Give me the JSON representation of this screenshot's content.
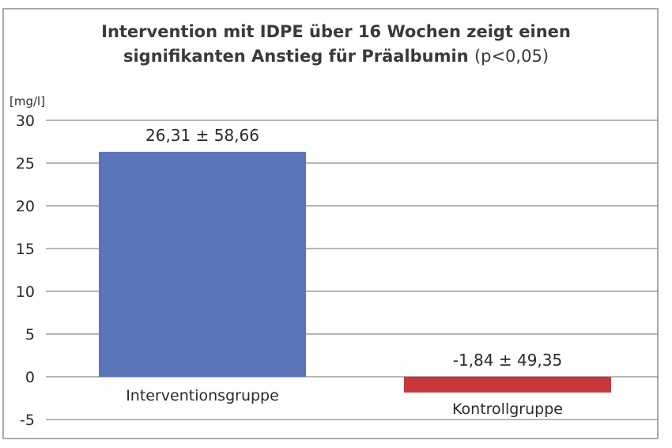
{
  "chart_data": {
    "type": "bar",
    "title_bold_line1": "Intervention mit IDPE über 16 Wochen zeigt einen",
    "title_bold_line2": "signifikanten Anstieg für Präalbumin",
    "title_note": "(p<0,05)",
    "ylabel": "[mg/l]",
    "ylim": [
      -5,
      30
    ],
    "yticks": [
      30,
      25,
      20,
      15,
      10,
      5,
      0,
      -5
    ],
    "categories": [
      "Interventionsgruppe",
      "Kontrollgruppe"
    ],
    "values": [
      26.31,
      -1.84
    ],
    "data_labels": [
      "26,31 ± 58,66",
      "-1,84 ± 49,35"
    ],
    "colors": [
      "#5b75b9",
      "#c8373b"
    ],
    "grid": true
  }
}
